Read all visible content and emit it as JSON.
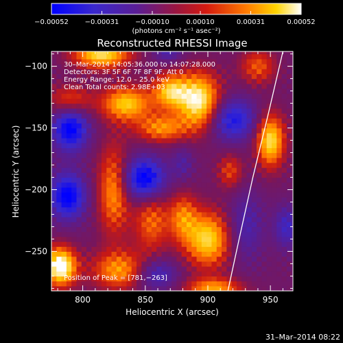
{
  "chart_data": {
    "type": "heatmap",
    "title": "Reconstructed RHESSI Image",
    "xlabel": "Heliocentric X (arcsec)",
    "ylabel": "Heliocentric Y (arcsec)",
    "xlim": [
      775,
      968
    ],
    "ylim": [
      -282,
      -88
    ],
    "x_ticks": [
      800,
      850,
      900,
      950
    ],
    "x_tick_labels": [
      "800",
      "850",
      "900",
      "950"
    ],
    "y_ticks": [
      -100,
      -150,
      -200,
      -250
    ],
    "y_tick_labels": [
      "−100",
      "−150",
      "−200",
      "−250"
    ],
    "colorbar": {
      "range": [
        -0.00052,
        0.00052
      ],
      "ticks": [
        -0.00052,
        -0.00031,
        -0.0001,
        0.0001,
        0.00031,
        0.00052
      ],
      "tick_labels": [
        "−0.00052",
        "−0.00031",
        "−0.00010",
        "0.00010",
        "0.00031",
        "0.00052"
      ],
      "units": "(photons cm⁻² s⁻¹ asec⁻²)",
      "colors": [
        "#0000ff",
        "#5520aa",
        "#8a1a60",
        "#c21a18",
        "#ff6600",
        "#ffc000",
        "#ffffff"
      ]
    },
    "annotations": [
      "30–Mar–2014 14:05:36.000 to 14:07:28.000",
      "Detectors: 3F 5F 6F 7F 8F 9F, Att 0",
      "Energy Range: 12.0 – 25.0 keV",
      "Clean    Total counts: 2.98E+03"
    ],
    "peak_label": "Position of Peak = [781,−263]",
    "peak": [
      781,
      -263
    ],
    "limb_curve": [
      [
        960,
        -88
      ],
      [
        948,
        -140
      ],
      [
        936,
        -190
      ],
      [
        925,
        -240
      ],
      [
        916,
        -282
      ]
    ],
    "sources": [
      {
        "x": 815,
        "y": -90,
        "v": 0.95,
        "sx": 16,
        "sy": 8
      },
      {
        "x": 835,
        "y": -130,
        "v": 0.85,
        "sx": 14,
        "sy": 10
      },
      {
        "x": 870,
        "y": -120,
        "v": 0.8,
        "sx": 10,
        "sy": 10
      },
      {
        "x": 893,
        "y": -128,
        "v": 1.05,
        "sx": 12,
        "sy": 16
      },
      {
        "x": 863,
        "y": -150,
        "v": 0.65,
        "sx": 14,
        "sy": 8
      },
      {
        "x": 950,
        "y": -160,
        "v": 0.95,
        "sx": 8,
        "sy": 15
      },
      {
        "x": 900,
        "y": -240,
        "v": 0.9,
        "sx": 13,
        "sy": 16
      },
      {
        "x": 880,
        "y": -222,
        "v": 0.55,
        "sx": 8,
        "sy": 14
      },
      {
        "x": 825,
        "y": -200,
        "v": 0.7,
        "sx": 9,
        "sy": 25
      },
      {
        "x": 830,
        "y": -265,
        "v": 0.7,
        "sx": 16,
        "sy": 11
      },
      {
        "x": 782,
        "y": -262,
        "v": 1.2,
        "sx": 9,
        "sy": 11
      },
      {
        "x": 790,
        "y": -128,
        "v": 0.55,
        "sx": 12,
        "sy": 9
      },
      {
        "x": 855,
        "y": -225,
        "v": 0.55,
        "sx": 10,
        "sy": 18
      },
      {
        "x": 918,
        "y": -185,
        "v": 0.45,
        "sx": 7,
        "sy": 10
      },
      {
        "x": 940,
        "y": -100,
        "v": 0.5,
        "sx": 10,
        "sy": 10
      },
      {
        "x": 905,
        "y": -280,
        "v": 0.7,
        "sx": 16,
        "sy": 6
      },
      {
        "x": 790,
        "y": -150,
        "v": -0.95,
        "sx": 10,
        "sy": 13
      },
      {
        "x": 788,
        "y": -205,
        "v": -0.95,
        "sx": 10,
        "sy": 13
      },
      {
        "x": 849,
        "y": -191,
        "v": -1.0,
        "sx": 12,
        "sy": 12
      },
      {
        "x": 920,
        "y": -143,
        "v": -0.75,
        "sx": 13,
        "sy": 12
      },
      {
        "x": 858,
        "y": -268,
        "v": -0.55,
        "sx": 12,
        "sy": 9
      },
      {
        "x": 868,
        "y": -88,
        "v": -0.4,
        "sx": 8,
        "sy": 6
      },
      {
        "x": 930,
        "y": -230,
        "v": -0.4,
        "sx": 10,
        "sy": 20
      },
      {
        "x": 963,
        "y": -230,
        "v": -0.5,
        "sx": 7,
        "sy": 12
      },
      {
        "x": 880,
        "y": -178,
        "v": -0.3,
        "sx": 6,
        "sy": 10
      }
    ]
  },
  "footer": {
    "timestamp": "31–Mar–2014 08:22"
  }
}
